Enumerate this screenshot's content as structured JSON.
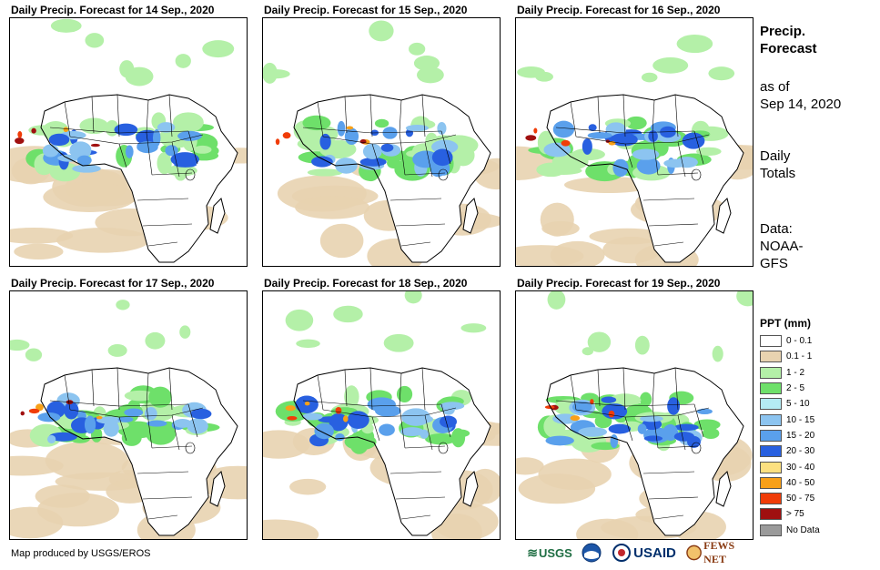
{
  "maps": [
    {
      "title": "Daily Precip. Forecast for 14  Sep., 2020"
    },
    {
      "title": "Daily Precip. Forecast for 15  Sep., 2020"
    },
    {
      "title": "Daily Precip. Forecast for 16  Sep., 2020"
    },
    {
      "title": "Daily Precip. Forecast for 17  Sep., 2020"
    },
    {
      "title": "Daily Precip. Forecast for 18  Sep., 2020"
    },
    {
      "title": "Daily Precip. Forecast for 19  Sep., 2020"
    }
  ],
  "side": {
    "heading_line1": "Precip.",
    "heading_line2": "Forecast",
    "asof_line1": "as of",
    "asof_line2": "Sep 14, 2020",
    "totals_line1": "Daily",
    "totals_line2": "Totals",
    "source_line1": "Data:",
    "source_line2": "NOAA-",
    "source_line3": "GFS"
  },
  "legend": {
    "title": "PPT (mm)",
    "items": [
      {
        "label": "0 - 0.1",
        "color": "#ffffff"
      },
      {
        "label": "0.1 - 1",
        "color": "#e8d3b0"
      },
      {
        "label": "1 - 2",
        "color": "#b4f0a8"
      },
      {
        "label": "2 - 5",
        "color": "#6ee06a"
      },
      {
        "label": "5 - 10",
        "color": "#b4ecf4"
      },
      {
        "label": "10 - 15",
        "color": "#8cc4f0"
      },
      {
        "label": "15 - 20",
        "color": "#5aa0ec"
      },
      {
        "label": "20 - 30",
        "color": "#2860e0"
      },
      {
        "label": "30 - 40",
        "color": "#fce080"
      },
      {
        "label": "40 - 50",
        "color": "#f8a018"
      },
      {
        "label": "50 - 75",
        "color": "#f03c08"
      },
      {
        "label": "> 75",
        "color": "#a01010"
      },
      {
        "label": "No Data",
        "color": "#9a9a9a"
      }
    ]
  },
  "footer": {
    "credit": "Map produced by USGS/EROS"
  },
  "logos": {
    "usgs": "USGS",
    "noaa": "NOAA",
    "usaid": "USAID",
    "fews": "FEWS NET"
  }
}
